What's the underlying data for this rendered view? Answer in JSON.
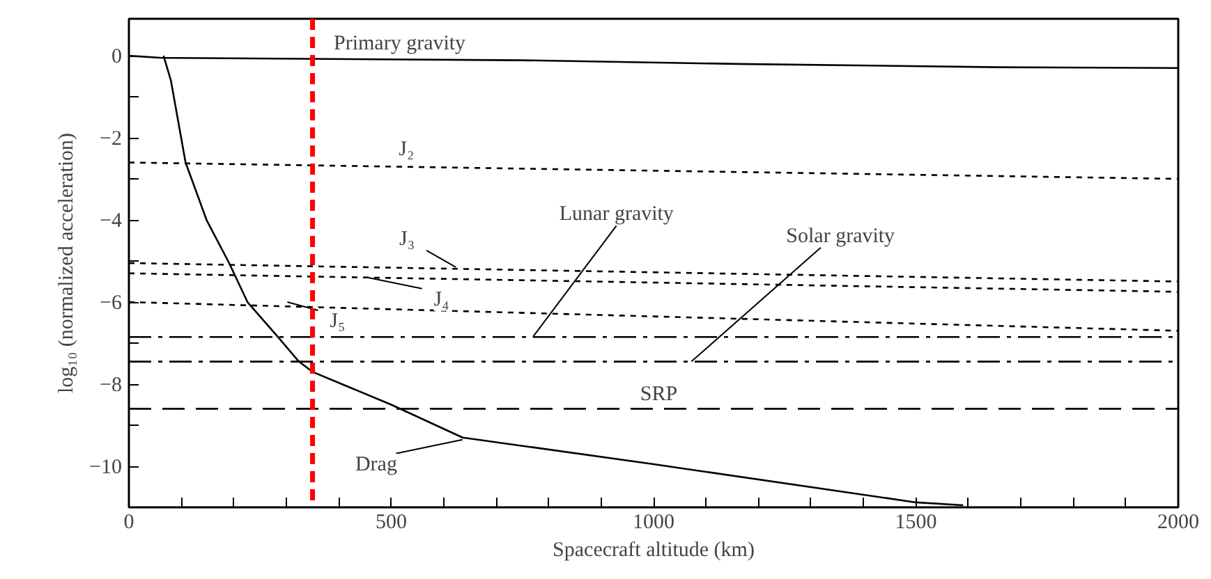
{
  "chart_data": {
    "type": "line",
    "xlabel": "Spacecraft altitude (km)",
    "ylabel": "log₁₀ (normalized acceleration)",
    "xlim": [
      0,
      2000
    ],
    "ylim": [
      -11,
      0.9
    ],
    "xticks": [
      0,
      {
        "value": 100,
        "label": null
      },
      {
        "value": 200,
        "label": null
      },
      {
        "value": 300,
        "label": null
      },
      {
        "value": 400,
        "label": null
      },
      500,
      {
        "value": 600,
        "label": null
      },
      {
        "value": 700,
        "label": null
      },
      {
        "value": 800,
        "label": null
      },
      {
        "value": 900,
        "label": null
      },
      1000,
      {
        "value": 1100,
        "label": null
      },
      {
        "value": 1200,
        "label": null
      },
      {
        "value": 1300,
        "label": null
      },
      {
        "value": 1400,
        "label": null
      },
      1500,
      {
        "value": 1600,
        "label": null
      },
      {
        "value": 1700,
        "label": null
      },
      {
        "value": 1800,
        "label": null
      },
      {
        "value": 1900,
        "label": null
      },
      2000
    ],
    "yticks": [
      {
        "value": -10,
        "label": "−10"
      },
      {
        "value": -9,
        "label": null
      },
      {
        "value": -8,
        "label": "−8"
      },
      {
        "value": -7,
        "label": null
      },
      {
        "value": -6,
        "label": "−6"
      },
      {
        "value": -5,
        "label": null
      },
      {
        "value": -4,
        "label": "−4"
      },
      {
        "value": -3,
        "label": null
      },
      {
        "value": -2,
        "label": "−2"
      },
      {
        "value": -1,
        "label": null
      },
      0
    ],
    "grid": false,
    "marker": "none",
    "series": [
      {
        "color": "#000000",
        "line_style": "solid",
        "x": [
          0,
          60,
          750,
          1160,
          1660,
          2000
        ],
        "values": [
          0,
          -0.05,
          -0.11,
          -0.2,
          -0.28,
          -0.3
        ]
      },
      {
        "color": "#000000",
        "line_style": "dashed",
        "x": [
          0,
          2000
        ],
        "values": [
          -2.6,
          -3.0
        ]
      },
      {
        "color": "#000000",
        "line_style": "dashed",
        "x": [
          0,
          2000
        ],
        "values": [
          -5.05,
          -5.5
        ]
      },
      {
        "color": "#000000",
        "line_style": "dashed",
        "x": [
          0,
          2000
        ],
        "values": [
          -5.3,
          -5.75
        ]
      },
      {
        "color": "#000000",
        "line_style": "dashed",
        "x": [
          0,
          2000
        ],
        "values": [
          -6.0,
          -6.7
        ]
      },
      {
        "color": "#000000",
        "line_style": "dashdot",
        "x": [
          0,
          2000
        ],
        "values": [
          -6.85,
          -6.85
        ]
      },
      {
        "color": "#000000",
        "line_style": "dashdot",
        "x": [
          0,
          2000
        ],
        "values": [
          -7.45,
          -7.45
        ]
      },
      {
        "color": "#000000",
        "line_style": "longdash",
        "x": [
          0,
          2000
        ],
        "values": [
          -8.6,
          -8.6
        ]
      },
      {
        "color": "#000000",
        "line_style": "solid",
        "x": [
          66,
          80,
          108,
          148,
          191,
          226,
          284,
          324,
          350,
          500,
          636,
          1000,
          1500,
          1590
        ],
        "values": [
          0,
          -0.6,
          -2.6,
          -4.0,
          -5.05,
          -6.0,
          -6.85,
          -7.45,
          -7.7,
          -8.5,
          -9.3,
          -9.95,
          -10.88,
          -10.95
        ]
      }
    ],
    "annotations": [
      {
        "text": "Primary gravity",
        "x": 516,
        "y": -0.08
      },
      {
        "text": "J₂",
        "x": 529,
        "y": -2.7
      },
      {
        "text": "J₃",
        "x": 623,
        "y": -5.15
      },
      {
        "text": "J₄",
        "x": 455,
        "y": -5.4
      },
      {
        "text": "J₅",
        "x": 302,
        "y": -6.0
      },
      {
        "text": "Lunar gravity",
        "x": 770,
        "y": -6.85
      },
      {
        "text": "Solar gravity",
        "x": 1072,
        "y": -7.45
      },
      {
        "text": "SRP",
        "x": 1010,
        "y": -8.6
      },
      {
        "text": "Drag",
        "x": 636,
        "y": -9.35
      }
    ],
    "ref_lines": [
      {
        "axis": "x",
        "value": 350,
        "color": "#ff0000",
        "line_style": "dashed"
      }
    ]
  }
}
